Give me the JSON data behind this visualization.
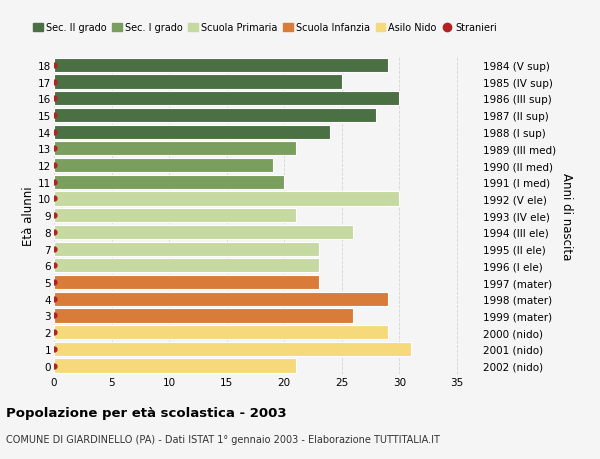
{
  "ages": [
    18,
    17,
    16,
    15,
    14,
    13,
    12,
    11,
    10,
    9,
    8,
    7,
    6,
    5,
    4,
    3,
    2,
    1,
    0
  ],
  "values": [
    29,
    25,
    30,
    28,
    24,
    21,
    19,
    20,
    30,
    21,
    26,
    23,
    23,
    23,
    29,
    26,
    29,
    31,
    21
  ],
  "right_labels": [
    "1984 (V sup)",
    "1985 (IV sup)",
    "1986 (III sup)",
    "1987 (II sup)",
    "1988 (I sup)",
    "1989 (III med)",
    "1990 (II med)",
    "1991 (I med)",
    "1992 (V ele)",
    "1993 (IV ele)",
    "1994 (III ele)",
    "1995 (II ele)",
    "1996 (I ele)",
    "1997 (mater)",
    "1998 (mater)",
    "1999 (mater)",
    "2000 (nido)",
    "2001 (nido)",
    "2002 (nido)"
  ],
  "bar_colors": [
    "#4a7043",
    "#4a7043",
    "#4a7043",
    "#4a7043",
    "#4a7043",
    "#7a9e5e",
    "#7a9e5e",
    "#7a9e5e",
    "#c5d9a0",
    "#c5d9a0",
    "#c5d9a0",
    "#c5d9a0",
    "#c5d9a0",
    "#d97c3a",
    "#d97c3a",
    "#d97c3a",
    "#f5d97a",
    "#f5d97a",
    "#f5d97a"
  ],
  "dot_color": "#b22222",
  "legend_labels": [
    "Sec. II grado",
    "Sec. I grado",
    "Scuola Primaria",
    "Scuola Infanzia",
    "Asilo Nido",
    "Stranieri"
  ],
  "legend_colors": [
    "#4a7043",
    "#7a9e5e",
    "#c5d9a0",
    "#d97c3a",
    "#f5d97a",
    "#b22222"
  ],
  "ylabel_left": "Età alunni",
  "ylabel_right": "Anni di nascita",
  "title": "Popolazione per età scolastica - 2003",
  "subtitle": "COMUNE DI GIARDINELLO (PA) - Dati ISTAT 1° gennaio 2003 - Elaborazione TUTTITALIA.IT",
  "xlim": [
    0,
    37
  ],
  "xticks": [
    0,
    5,
    10,
    15,
    20,
    25,
    30,
    35
  ],
  "bg_color": "#f5f5f5",
  "bar_edge_color": "#ffffff",
  "grid_color": "#cccccc",
  "bar_height": 0.85
}
